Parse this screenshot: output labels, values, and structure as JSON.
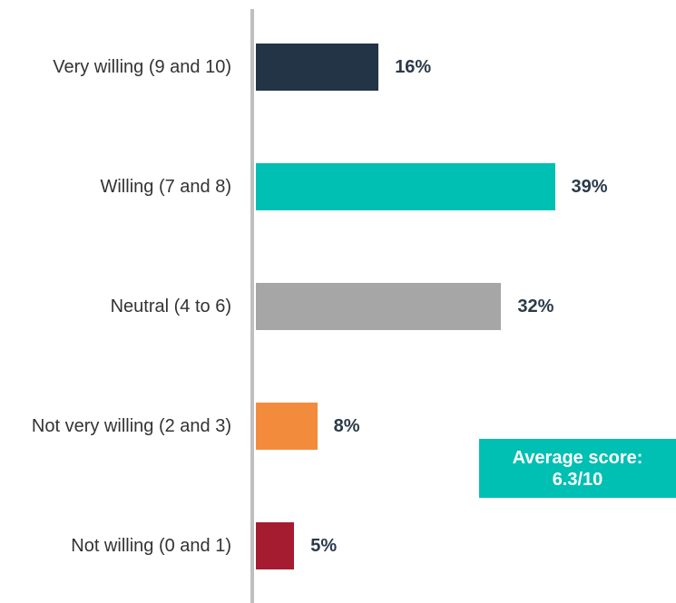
{
  "chart_data": {
    "type": "bar",
    "orientation": "horizontal",
    "categories": [
      "Very willing (9 and 10)",
      "Willing (7 and 8)",
      "Neutral (4 to 6)",
      "Not very willing (2 and 3)",
      "Not willing (0 and 1)"
    ],
    "values": [
      16,
      39,
      32,
      8,
      5
    ],
    "value_labels": [
      "16%",
      "39%",
      "32%",
      "8%",
      "5%"
    ],
    "colors": [
      "#243447",
      "#00bfb3",
      "#a6a6a6",
      "#f38b3c",
      "#a51c30"
    ],
    "annotation": [
      "Average score:",
      "6.3/10"
    ]
  }
}
